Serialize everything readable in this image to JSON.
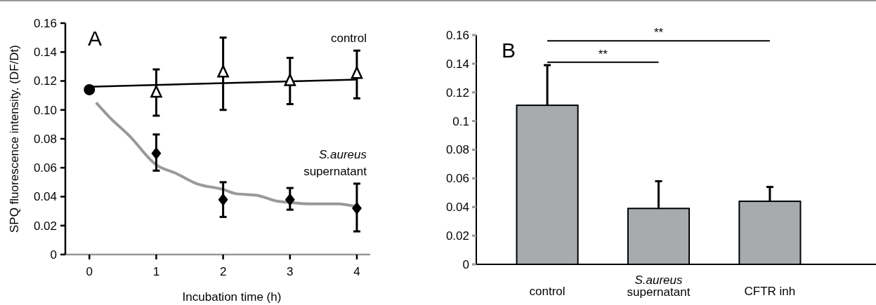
{
  "chart_data": [
    {
      "type": "line",
      "title": "A",
      "xlabel": "Incubation time (h)",
      "ylabel": "SPQ fluorescence intensity. (DF/Dt)",
      "xlim": [
        -0.36,
        4.2
      ],
      "xticks": [
        0,
        1,
        2,
        3,
        4
      ],
      "ylim": [
        0,
        0.16
      ],
      "yticks": [
        0,
        0.02,
        0.04,
        0.06,
        0.08,
        {
          "value": 0.1,
          "label": "0.10"
        },
        0.12,
        0.14,
        0.16
      ],
      "series": [
        {
          "type": "line",
          "color": "#999999",
          "marker": "none",
          "x": [
            0.1,
            0.3,
            0.6,
            1,
            1.3,
            1.6,
            2,
            2.2,
            2.5,
            2.8,
            3,
            3.3,
            3.7,
            4
          ],
          "values": [
            0.105,
            0.095,
            0.082,
            0.062,
            0.056,
            0.049,
            0.045,
            0.042,
            0.041,
            0.037,
            0.036,
            0.035,
            0.035,
            0.033
          ]
        },
        {
          "type": "line",
          "color": "#000000",
          "marker": "none",
          "x": [
            0,
            4
          ],
          "values": [
            0.116,
            0.121
          ]
        },
        {
          "type": "scatter",
          "name": "control",
          "color": "#000000",
          "marker": "triangle",
          "x": [
            1,
            2,
            3,
            4
          ],
          "values": [
            0.112,
            0.126,
            0.12,
            0.125
          ],
          "errors": [
            [
              0.096,
              0.128
            ],
            [
              0.1,
              0.15
            ],
            [
              0.104,
              0.136
            ],
            [
              0.108,
              0.141
            ]
          ]
        },
        {
          "type": "scatter",
          "name": "S.aureus supernatant",
          "color": "#000000",
          "marker": "diamond",
          "x": [
            1,
            2,
            3,
            4
          ],
          "values": [
            0.07,
            0.038,
            0.038,
            0.032
          ],
          "errors": [
            [
              0.058,
              0.083
            ],
            [
              0.026,
              0.05
            ],
            [
              0.031,
              0.046
            ],
            [
              0.016,
              0.049
            ]
          ]
        },
        {
          "type": "scatter",
          "color": "#000000",
          "marker": "circle",
          "x": [
            0
          ],
          "values": [
            0.114
          ]
        }
      ]
    },
    {
      "type": "bar",
      "title": "B",
      "categories": [
        "control",
        "S.aureus supernatant",
        "CFTR inh"
      ],
      "values": [
        0.111,
        0.039,
        0.044
      ],
      "color": "#a8abae",
      "errors": [
        [
          0.111,
          0.139
        ],
        [
          0.039,
          0.058
        ],
        [
          0.044,
          0.054
        ]
      ],
      "ylim": [
        0,
        0.16
      ],
      "yticks": [
        0,
        0.02,
        0.04,
        0.06,
        0.08,
        0.1,
        0.12,
        0.14,
        0.16
      ],
      "annotations": [
        "**",
        "**"
      ]
    }
  ]
}
